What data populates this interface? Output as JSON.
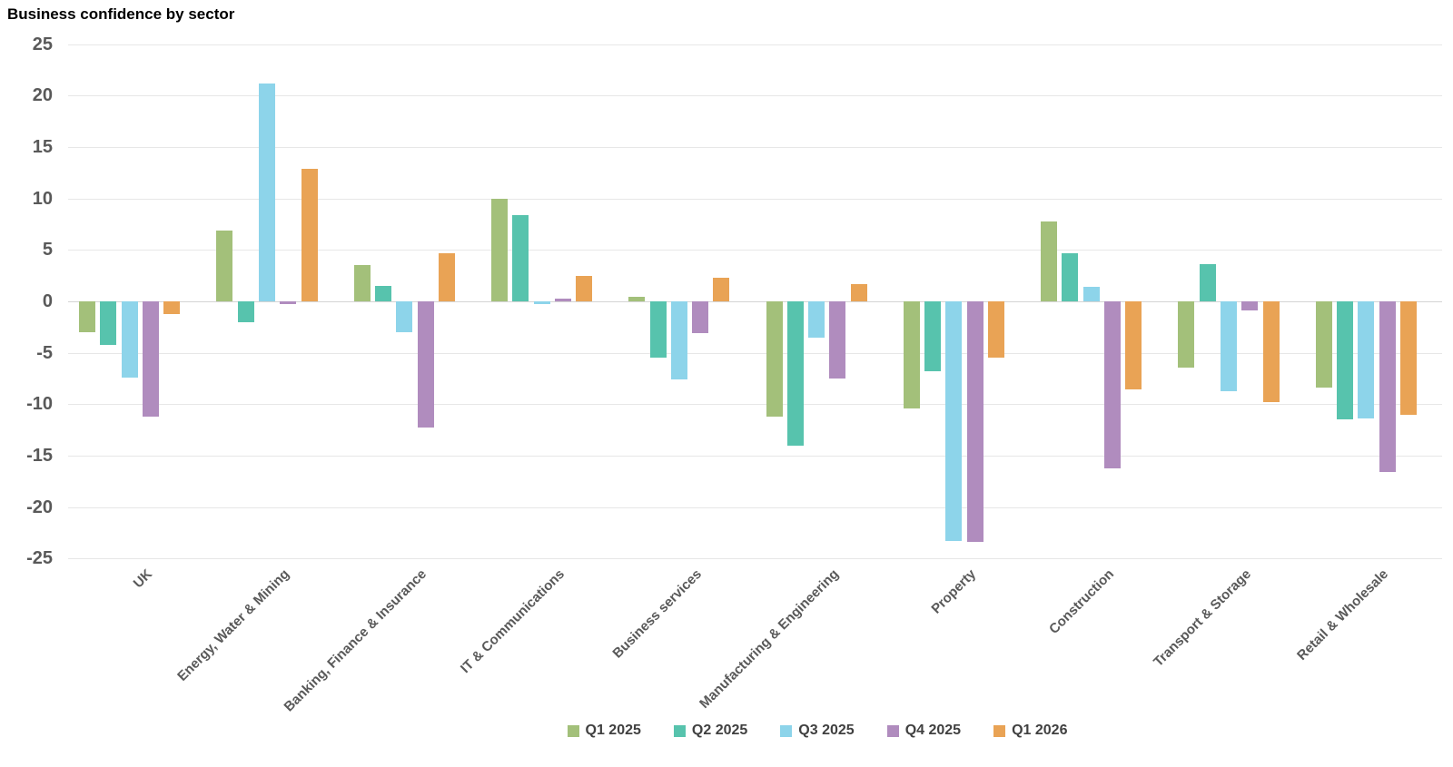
{
  "title": "Business confidence by sector",
  "chart_data": {
    "type": "bar",
    "title": "Business confidence by sector",
    "categories": [
      "UK",
      "Energy, Water & Mining",
      "Banking, Finance & Insurance",
      "IT & Communications",
      "Business services",
      "Manufacturing & Engineering",
      "Property",
      "Construction",
      "Transport & Storage",
      "Retail & Wholesale"
    ],
    "series": [
      {
        "name": "Q1 2025",
        "color": "#a3c07a",
        "values": [
          -3.0,
          6.9,
          3.5,
          10.0,
          0.4,
          -11.2,
          -10.4,
          7.8,
          -6.4,
          -8.4
        ]
      },
      {
        "name": "Q2 2025",
        "color": "#57c3ad",
        "values": [
          -4.2,
          -2.0,
          1.5,
          8.4,
          -5.5,
          -14.0,
          -6.8,
          4.7,
          3.6,
          -11.5
        ]
      },
      {
        "name": "Q3 2025",
        "color": "#8dd4ea",
        "values": [
          -7.4,
          21.2,
          -3.0,
          -0.3,
          -7.6,
          -3.5,
          -23.3,
          1.4,
          -8.7,
          -11.4
        ]
      },
      {
        "name": "Q4 2025",
        "color": "#b08cbe",
        "values": [
          -11.2,
          -0.3,
          -12.3,
          0.3,
          -3.1,
          -7.5,
          -23.4,
          -16.2,
          -0.9,
          -16.6
        ]
      },
      {
        "name": "Q1 2026",
        "color": "#e9a355",
        "values": [
          -1.2,
          12.9,
          4.7,
          2.5,
          2.3,
          1.7,
          -5.5,
          -8.6,
          -9.8,
          -11.0
        ]
      }
    ],
    "ylim": [
      -25,
      25
    ],
    "ytick_step": 5,
    "ytick_labels": [
      "25",
      "20",
      "15",
      "10",
      "5",
      "0",
      "-5",
      "-10",
      "-15",
      "-20",
      "-25"
    ],
    "grid": true,
    "legend_position": "bottom"
  },
  "colors": {
    "grid": "#e7e7e7",
    "zero_line": "#d4d4d4",
    "tick_text": "#595959",
    "category_text": "#595959",
    "legend_text": "#404040"
  }
}
